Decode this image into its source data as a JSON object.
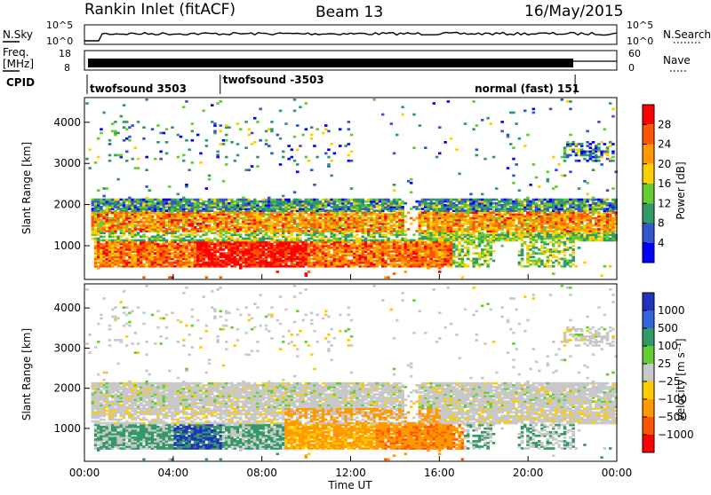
{
  "header": {
    "site": "Rankin Inlet (fitACF)",
    "beam": "Beam 13",
    "date": "16/May/2015"
  },
  "top_panels": {
    "nsky_label": "N.Sky",
    "nsky_ticks": [
      "10^5",
      "10^0"
    ],
    "nsearch_label": "N.Search",
    "nsearch_ticks": [
      "10^5",
      "10^0"
    ],
    "freq_label_1": "Freq.",
    "freq_label_2": "[MHz]",
    "freq_ticks": [
      "18",
      "8"
    ],
    "nave_label": "Nave",
    "nave_ticks": [
      "60",
      "0"
    ],
    "cpid_label": "CPID",
    "cpid_segments": [
      {
        "label": "twofsound 3503",
        "start_hour": 0.0,
        "end_hour": 6.0
      },
      {
        "label": "twofsound -3503",
        "start_hour": 6.0,
        "end_hour": 22.0
      },
      {
        "label": "normal (fast) 151",
        "start_hour": 22.0,
        "end_hour": 24.0
      }
    ]
  },
  "chart_data": [
    {
      "type": "heatmap",
      "quantity": "Power",
      "xlabel": "",
      "ylabel": "Slant Range [km]",
      "xlim_hours": [
        0,
        24
      ],
      "ylim": [
        180,
        4600
      ],
      "yticks": [
        "1000",
        "2000",
        "3000",
        "4000"
      ],
      "colorbar_label": "Power [dB]",
      "colorbar_ticks": [
        "28",
        "24",
        "20",
        "16",
        "12",
        "8",
        "4"
      ],
      "colorbar_colors": [
        "#ff0000",
        "#ff5500",
        "#ff9900",
        "#ffd000",
        "#66cc33",
        "#339966",
        "#3355cc",
        "#0000ff"
      ]
    },
    {
      "type": "heatmap",
      "quantity": "Velocity",
      "xlabel": "Time UT",
      "ylabel": "Slant Range [km]",
      "xlim_hours": [
        0,
        24
      ],
      "ylim": [
        180,
        4600
      ],
      "yticks": [
        "1000",
        "2000",
        "3000",
        "4000"
      ],
      "xticks": [
        "00:00",
        "04:00",
        "08:00",
        "12:00",
        "16:00",
        "20:00",
        "00:00"
      ],
      "colorbar_label": "Velocity [m s⁻¹]",
      "colorbar_ticks": [
        "1000",
        "500",
        "100",
        "25",
        "−25",
        "−100",
        "−500",
        "−1000"
      ],
      "colorbar_colors": [
        "#2233bb",
        "#3366dd",
        "#339966",
        "#66cc33",
        "#c8c8c8",
        "#ffcc00",
        "#ff9900",
        "#ff5500",
        "#ff0000"
      ]
    }
  ]
}
